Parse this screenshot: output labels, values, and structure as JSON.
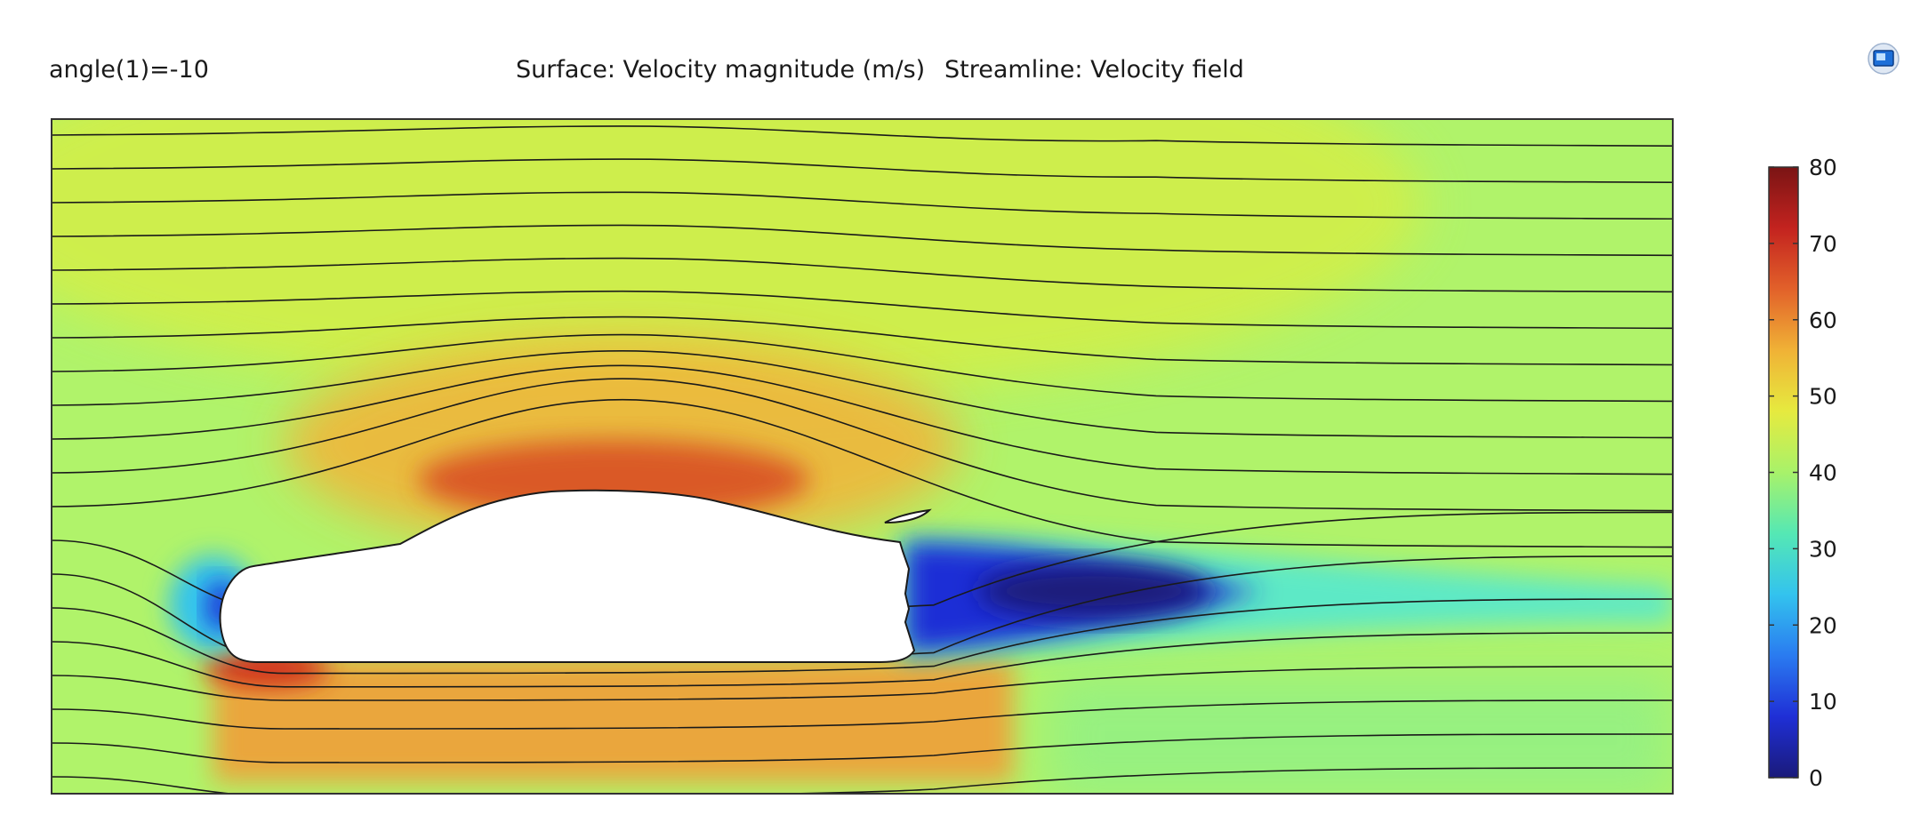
{
  "header": {
    "parameter_label": "angle(1)=-10",
    "surface_label": "Surface: Velocity magnitude (m/s)",
    "streamline_label": "Streamline: Velocity field"
  },
  "toolbar": {
    "icon": "comsol-app-icon"
  },
  "colors": {
    "background": "#ffffff",
    "body_fill": "#ffffff",
    "streamline": "#1a1a1a",
    "frame": "#333333"
  },
  "colorbar": {
    "min": 0,
    "max": 80,
    "ticks": [
      "0",
      "10",
      "20",
      "30",
      "40",
      "50",
      "60",
      "70",
      "80"
    ],
    "colormap": "rainbow",
    "stops": [
      "#1a1a7a",
      "#1f2fd6",
      "#2a7bf0",
      "#33c3ee",
      "#55e8b4",
      "#a8f26a",
      "#e6ea3f",
      "#f0b236",
      "#e2612a",
      "#c3231f",
      "#7a1414"
    ]
  },
  "chart_data": {
    "type": "heatmap",
    "title": "Surface: Velocity magnitude (m/s)  Streamline: Velocity field",
    "parameter": "angle(1)=-10",
    "field": "Velocity magnitude (m/s)",
    "overlay": "Streamline: Velocity field",
    "scale_range": [
      0,
      80
    ],
    "freestream_value": 42,
    "regions": [
      {
        "name": "roof acceleration",
        "value": 72
      },
      {
        "name": "underbody",
        "value": 60
      },
      {
        "name": "front stagnation",
        "value": 12
      },
      {
        "name": "wake core",
        "value": 5
      },
      {
        "name": "upper field",
        "value": 47
      }
    ],
    "streamline_count": 20
  }
}
